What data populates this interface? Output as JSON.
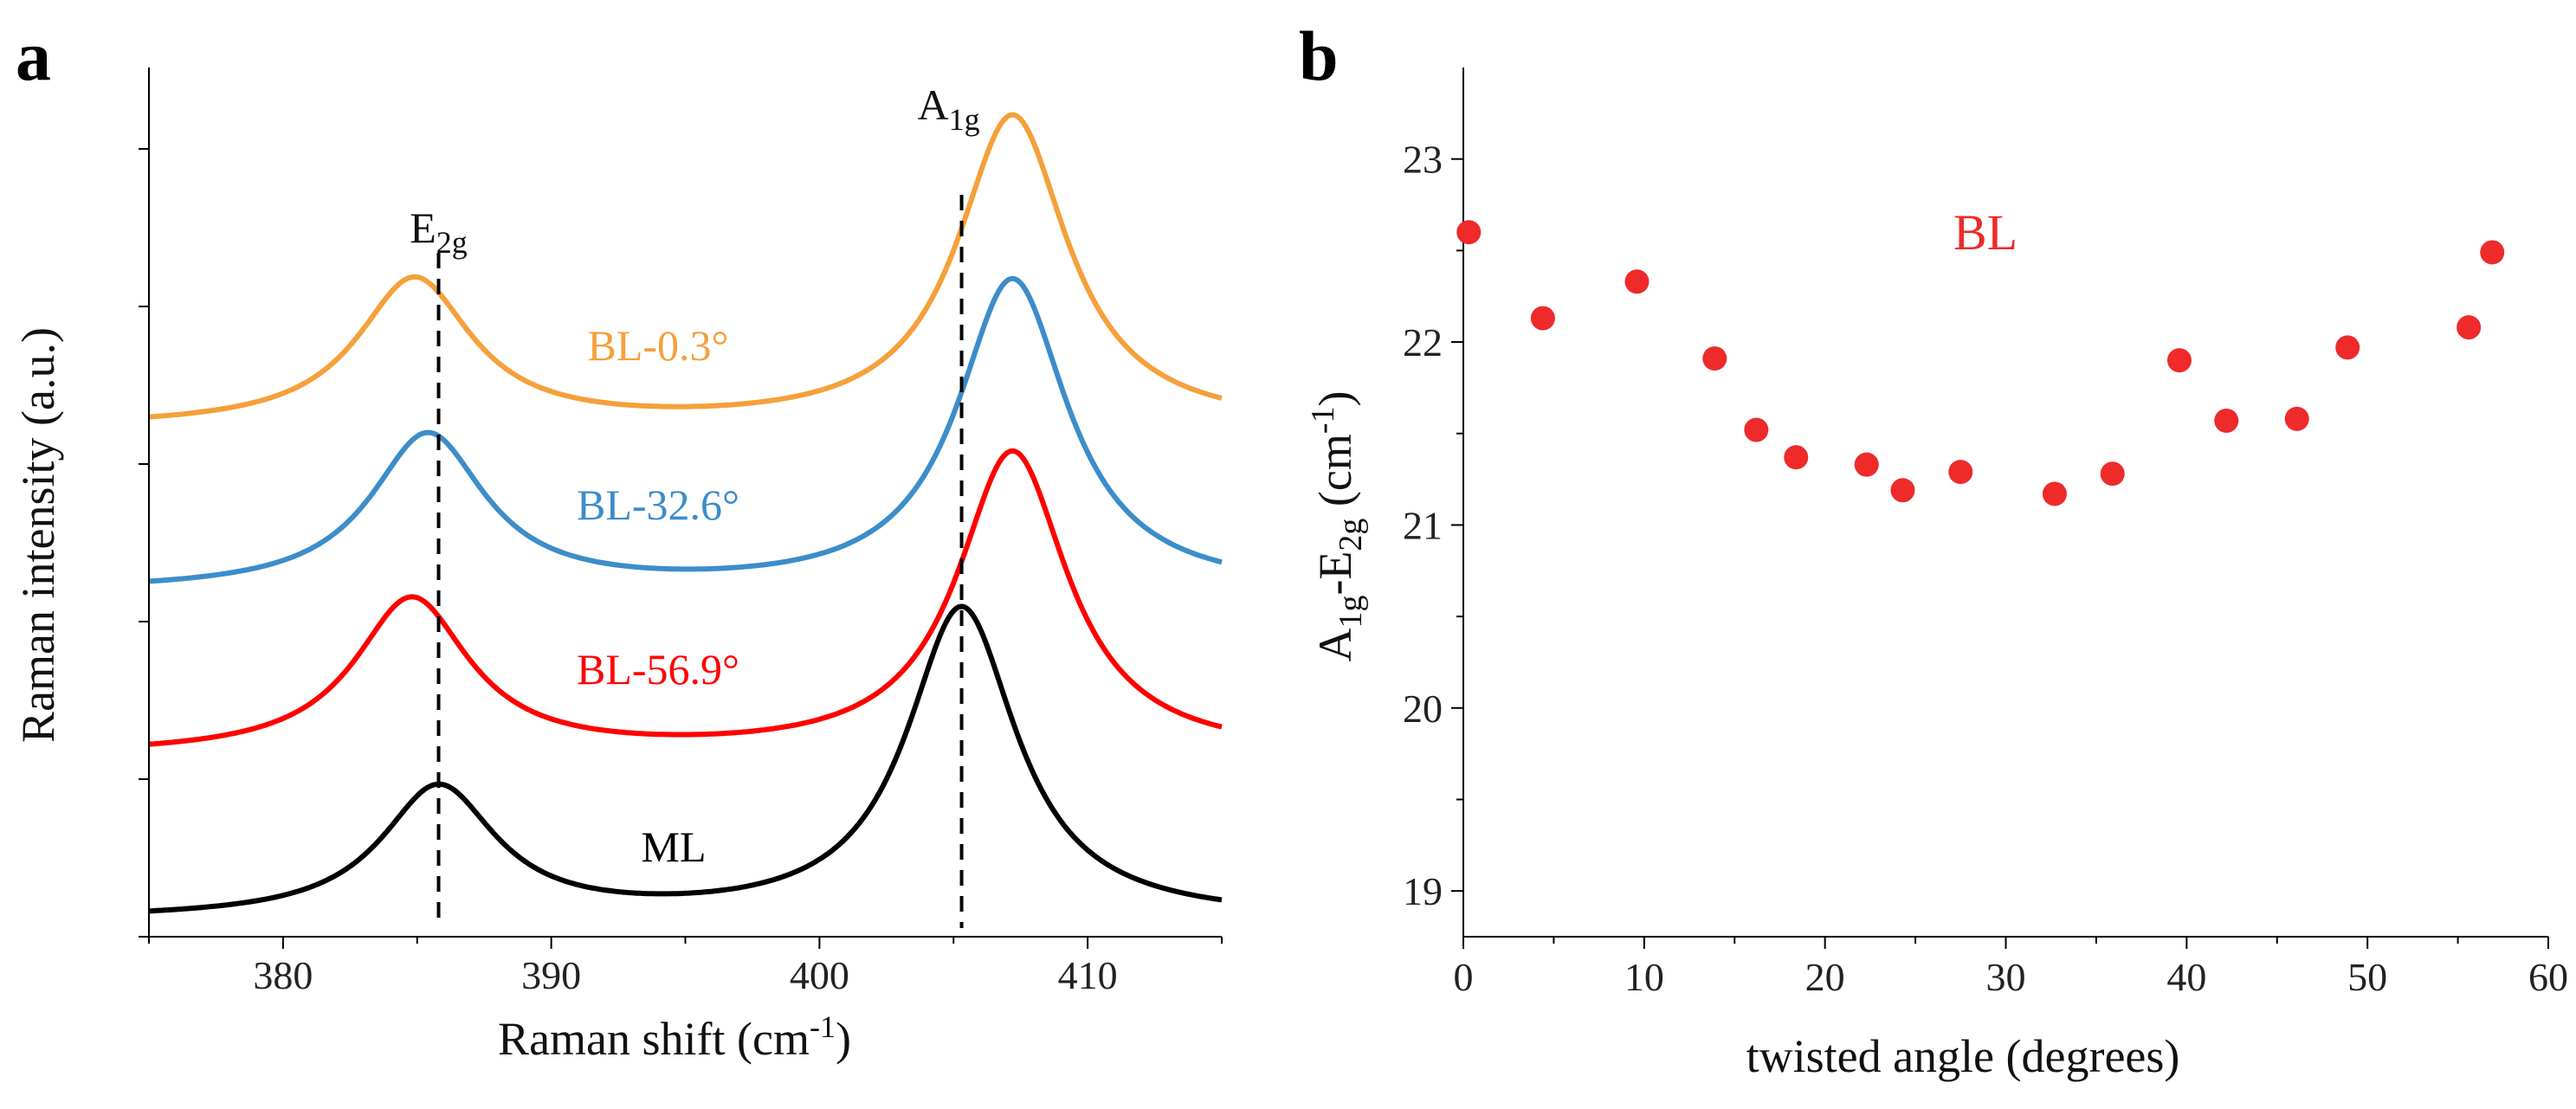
{
  "panel_labels": [
    "a",
    "b"
  ],
  "chart_data": [
    {
      "panel": "a",
      "type": "line",
      "title": "",
      "xlabel": "Raman shift (cm",
      "xlabel_sup": "-1",
      "xlabel_tail": ")",
      "ylabel": "Raman intensity (a.u.)",
      "xlim": [
        375,
        415
      ],
      "ylim": [
        0,
        5.3
      ],
      "xticks": [
        380,
        390,
        400,
        410
      ],
      "yticks_count": 5,
      "peak_lines": [
        {
          "name": "E",
          "sub": "2g",
          "x": 385.8
        },
        {
          "name": "A",
          "sub": "1g",
          "x": 405.3
        }
      ],
      "series": [
        {
          "name": "ML",
          "color": "#000000",
          "offset": 0.1,
          "peaks": [
            {
              "x0": 385.8,
              "amp": 0.8,
              "w": 2.6
            },
            {
              "x0": 405.3,
              "amp": 1.9,
              "w": 2.5
            }
          ]
        },
        {
          "name": "BL-56.9°",
          "color": "#ff0000",
          "offset": 1.1,
          "peaks": [
            {
              "x0": 384.8,
              "amp": 0.95,
              "w": 2.6
            },
            {
              "x0": 407.2,
              "amp": 1.85,
              "w": 2.5
            }
          ]
        },
        {
          "name": "BL-32.6°",
          "color": "#3c8dc9",
          "offset": 2.1,
          "peaks": [
            {
              "x0": 385.4,
              "amp": 0.95,
              "w": 2.6
            },
            {
              "x0": 407.2,
              "amp": 1.9,
              "w": 2.5
            }
          ]
        },
        {
          "name": "BL-0.3°",
          "color": "#f5a03a",
          "offset": 3.1,
          "peaks": [
            {
              "x0": 384.9,
              "amp": 0.9,
              "w": 2.6
            },
            {
              "x0": 407.2,
              "amp": 1.9,
              "w": 2.5
            }
          ]
        }
      ]
    },
    {
      "panel": "b",
      "type": "scatter",
      "title": "",
      "xlabel": "twisted angle (degrees)",
      "ylabel": "A1g-E2g (cm-1)",
      "xlim": [
        0,
        60
      ],
      "ylim": [
        18.75,
        23.5
      ],
      "xticks": [
        0,
        10,
        20,
        30,
        40,
        50,
        60
      ],
      "yticks": [
        19,
        20,
        21,
        22,
        23
      ],
      "annotation": "BL",
      "color": "#ee2a2a",
      "series": [
        {
          "name": "BL",
          "x": [
            0.3,
            4.4,
            9.6,
            13.9,
            16.2,
            18.4,
            22.3,
            24.3,
            27.5,
            32.7,
            35.9,
            39.6,
            42.2,
            46.1,
            48.9,
            55.6,
            56.9
          ],
          "y": [
            22.6,
            22.13,
            22.33,
            21.91,
            21.52,
            21.37,
            21.33,
            21.19,
            21.29,
            21.17,
            21.28,
            21.9,
            21.57,
            21.58,
            21.97,
            22.08,
            22.49
          ]
        }
      ]
    }
  ]
}
